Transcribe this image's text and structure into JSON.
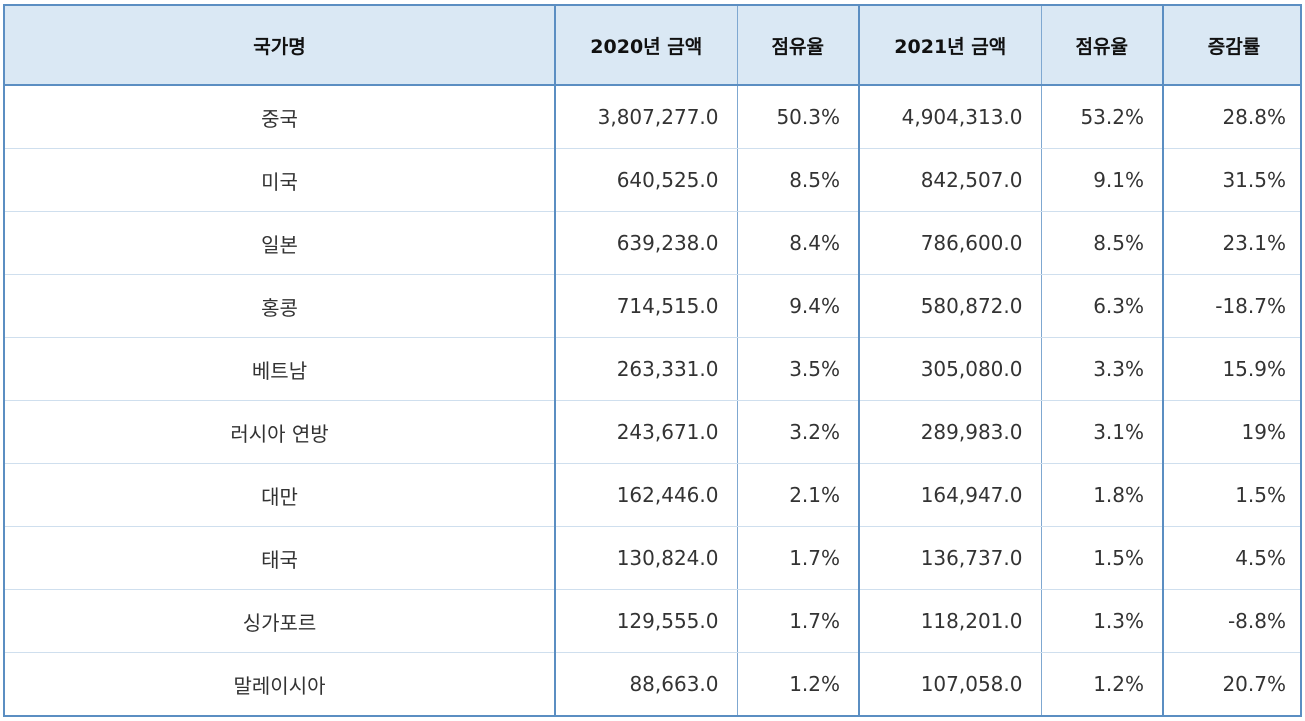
{
  "table": {
    "headers": [
      "국가명",
      "2020년 금액",
      "점유율",
      "2021년 금액",
      "점유율",
      "증감률"
    ],
    "rows": [
      [
        "중국",
        "3,807,277.0",
        "50.3%",
        "4,904,313.0",
        "53.2%",
        "28.8%"
      ],
      [
        "미국",
        "640,525.0",
        "8.5%",
        "842,507.0",
        "9.1%",
        "31.5%"
      ],
      [
        "일본",
        "639,238.0",
        "8.4%",
        "786,600.0",
        "8.5%",
        "23.1%"
      ],
      [
        "홍콩",
        "714,515.0",
        "9.4%",
        "580,872.0",
        "6.3%",
        "-18.7%"
      ],
      [
        "베트남",
        "263,331.0",
        "3.5%",
        "305,080.0",
        "3.3%",
        "15.9%"
      ],
      [
        "러시아 연방",
        "243,671.0",
        "3.2%",
        "289,983.0",
        "3.1%",
        "19%"
      ],
      [
        "대만",
        "162,446.0",
        "2.1%",
        "164,947.0",
        "1.8%",
        "1.5%"
      ],
      [
        "태국",
        "130,824.0",
        "1.7%",
        "136,737.0",
        "1.5%",
        "4.5%"
      ],
      [
        "싱가포르",
        "129,555.0",
        "1.7%",
        "118,201.0",
        "1.3%",
        "-8.8%"
      ],
      [
        "말레이시아",
        "88,663.0",
        "1.2%",
        "107,058.0",
        "1.2%",
        "20.7%"
      ]
    ]
  },
  "colors": {
    "header_bg": "#dae8f4",
    "border_accent": "#5b8ec2",
    "row_divider": "#cfdfee"
  }
}
